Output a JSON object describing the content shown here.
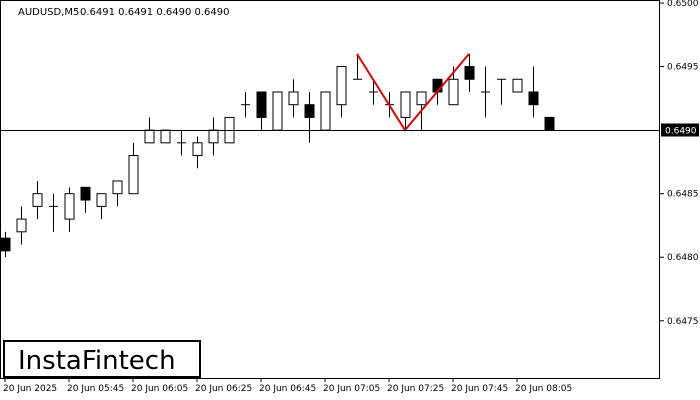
{
  "header": {
    "symbol": "AUDUSD,M5",
    "ohlc": "0.6491 0.6491 0.6490 0.6490"
  },
  "logo": {
    "text": "InstaFintech"
  },
  "colors": {
    "pattern": "#e00000",
    "bull_body": "#ffffff",
    "bear_body": "#000000",
    "line": "#000000"
  },
  "chart_data": {
    "type": "candlestick",
    "y_range": [
      0.64705,
      0.65
    ],
    "y_ticks": [
      {
        "value": 0.65,
        "label": "0.6500"
      },
      {
        "value": 0.6495,
        "label": "0.6495"
      },
      {
        "value": 0.6485,
        "label": "0.6485"
      },
      {
        "value": 0.648,
        "label": "0.6480"
      },
      {
        "value": 0.6475,
        "label": "0.6475"
      }
    ],
    "x_ticks": [
      {
        "index": 0,
        "label": "20 Jun 2025"
      },
      {
        "index": 4,
        "label": "20 Jun 05:45"
      },
      {
        "index": 8,
        "label": "20 Jun 06:05"
      },
      {
        "index": 12,
        "label": "20 Jun 06:25"
      },
      {
        "index": 16,
        "label": "20 Jun 06:45"
      },
      {
        "index": 20,
        "label": "20 Jun 07:05"
      },
      {
        "index": 24,
        "label": "20 Jun 07:25"
      },
      {
        "index": 28,
        "label": "20 Jun 07:45"
      },
      {
        "index": 32,
        "label": "20 Jun 08:05"
      }
    ],
    "current_price": {
      "value": 0.649,
      "label": "0.6490"
    },
    "candles": [
      {
        "o": 0.64815,
        "h": 0.6482,
        "l": 0.648,
        "c": 0.64805
      },
      {
        "o": 0.6482,
        "h": 0.6484,
        "l": 0.6481,
        "c": 0.6483
      },
      {
        "o": 0.6484,
        "h": 0.6486,
        "l": 0.6483,
        "c": 0.6485
      },
      {
        "o": 0.6484,
        "h": 0.6485,
        "l": 0.6482,
        "c": 0.6484
      },
      {
        "o": 0.6483,
        "h": 0.64855,
        "l": 0.6482,
        "c": 0.6485
      },
      {
        "o": 0.64855,
        "h": 0.64855,
        "l": 0.64835,
        "c": 0.64845
      },
      {
        "o": 0.6484,
        "h": 0.6485,
        "l": 0.6483,
        "c": 0.6485
      },
      {
        "o": 0.6485,
        "h": 0.6486,
        "l": 0.6484,
        "c": 0.6486
      },
      {
        "o": 0.6485,
        "h": 0.6489,
        "l": 0.6485,
        "c": 0.6488
      },
      {
        "o": 0.6489,
        "h": 0.6491,
        "l": 0.6489,
        "c": 0.649
      },
      {
        "o": 0.6489,
        "h": 0.649,
        "l": 0.6489,
        "c": 0.649
      },
      {
        "o": 0.6489,
        "h": 0.649,
        "l": 0.6488,
        "c": 0.6489
      },
      {
        "o": 0.6488,
        "h": 0.64895,
        "l": 0.6487,
        "c": 0.6489
      },
      {
        "o": 0.6489,
        "h": 0.6491,
        "l": 0.6488,
        "c": 0.649
      },
      {
        "o": 0.6489,
        "h": 0.6491,
        "l": 0.6489,
        "c": 0.6491
      },
      {
        "o": 0.6492,
        "h": 0.6493,
        "l": 0.6491,
        "c": 0.6492
      },
      {
        "o": 0.6493,
        "h": 0.6493,
        "l": 0.649,
        "c": 0.6491
      },
      {
        "o": 0.649,
        "h": 0.6493,
        "l": 0.649,
        "c": 0.6493
      },
      {
        "o": 0.6492,
        "h": 0.6494,
        "l": 0.6491,
        "c": 0.6493
      },
      {
        "o": 0.6492,
        "h": 0.6493,
        "l": 0.6489,
        "c": 0.6491
      },
      {
        "o": 0.649,
        "h": 0.6493,
        "l": 0.649,
        "c": 0.6493
      },
      {
        "o": 0.6492,
        "h": 0.6495,
        "l": 0.6491,
        "c": 0.6495
      },
      {
        "o": 0.6494,
        "h": 0.6496,
        "l": 0.6494,
        "c": 0.6494
      },
      {
        "o": 0.6493,
        "h": 0.6494,
        "l": 0.6492,
        "c": 0.6493
      },
      {
        "o": 0.6492,
        "h": 0.6493,
        "l": 0.6491,
        "c": 0.6492
      },
      {
        "o": 0.6491,
        "h": 0.6493,
        "l": 0.649,
        "c": 0.6493
      },
      {
        "o": 0.6492,
        "h": 0.6493,
        "l": 0.649,
        "c": 0.6493
      },
      {
        "o": 0.6494,
        "h": 0.6494,
        "l": 0.6492,
        "c": 0.6493
      },
      {
        "o": 0.6492,
        "h": 0.6495,
        "l": 0.6492,
        "c": 0.6494
      },
      {
        "o": 0.6495,
        "h": 0.6496,
        "l": 0.6493,
        "c": 0.6494
      },
      {
        "o": 0.6493,
        "h": 0.6495,
        "l": 0.6491,
        "c": 0.6493
      },
      {
        "o": 0.6494,
        "h": 0.6494,
        "l": 0.6492,
        "c": 0.6494
      },
      {
        "o": 0.6493,
        "h": 0.6494,
        "l": 0.6493,
        "c": 0.6494
      },
      {
        "o": 0.6493,
        "h": 0.6495,
        "l": 0.6491,
        "c": 0.6492
      },
      {
        "o": 0.6491,
        "h": 0.6491,
        "l": 0.649,
        "c": 0.649
      }
    ],
    "pattern_line": [
      {
        "index": 22,
        "value": 0.6496
      },
      {
        "index": 25,
        "value": 0.649
      },
      {
        "index": 29,
        "value": 0.6496
      }
    ]
  }
}
